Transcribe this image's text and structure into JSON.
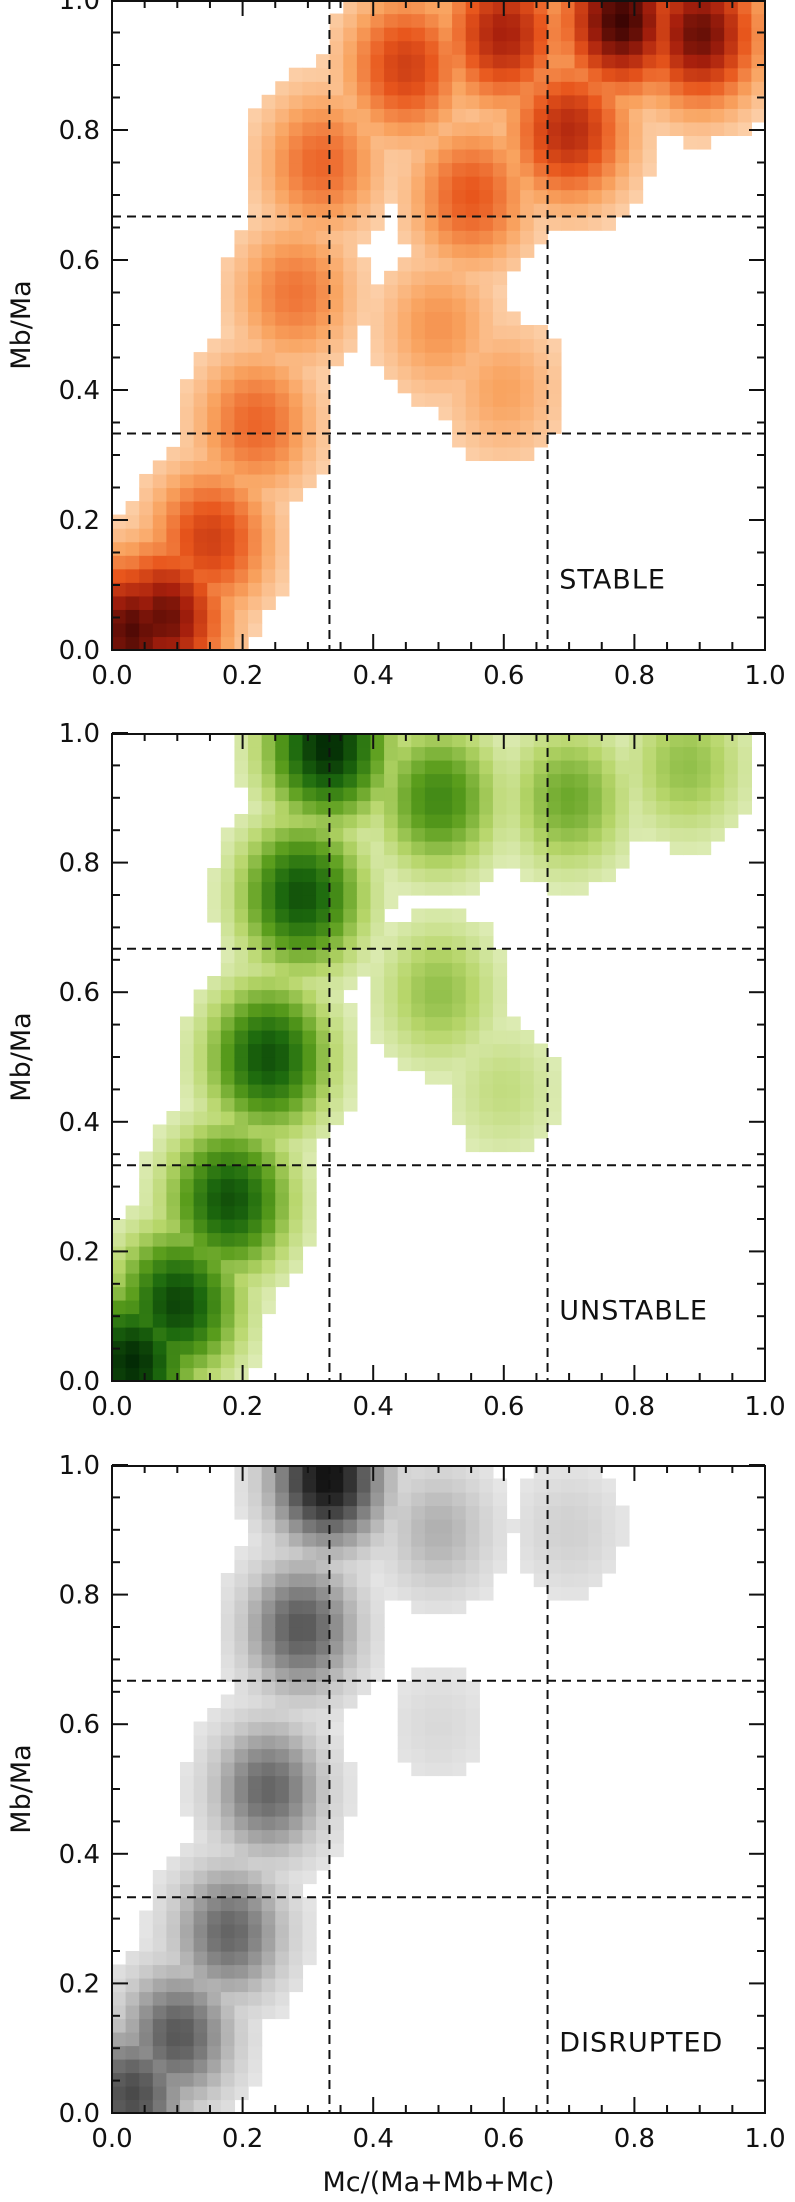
{
  "chart_data": [
    {
      "type": "heatmap",
      "label": "STABLE",
      "ylabel": "Mb/Ma",
      "xlabel": "",
      "xlim": [
        0.0,
        1.0
      ],
      "ylim": [
        0.0,
        1.0
      ],
      "x_ticks": [
        "0.0",
        "0.2",
        "0.4",
        "0.6",
        "0.8",
        "1.0"
      ],
      "y_ticks": [
        "0.0",
        "0.2",
        "0.4",
        "0.6",
        "0.8",
        "1.0"
      ],
      "reference_lines": {
        "vertical": [
          0.333,
          0.667
        ],
        "horizontal": [
          0.333,
          0.667
        ]
      },
      "colormap": [
        "#fde3c9",
        "#f9a35f",
        "#e8561c",
        "#a8200d",
        "#3c0503"
      ],
      "density_description_points": [
        {
          "x": 0.03,
          "y": 0.03,
          "level": 0.95
        },
        {
          "x": 0.08,
          "y": 0.05,
          "level": 0.9
        },
        {
          "x": 0.15,
          "y": 0.17,
          "level": 0.6
        },
        {
          "x": 0.22,
          "y": 0.35,
          "level": 0.45
        },
        {
          "x": 0.28,
          "y": 0.55,
          "level": 0.4
        },
        {
          "x": 0.32,
          "y": 0.75,
          "level": 0.45
        },
        {
          "x": 0.45,
          "y": 0.9,
          "level": 0.6
        },
        {
          "x": 0.6,
          "y": 0.95,
          "level": 0.75
        },
        {
          "x": 0.78,
          "y": 0.97,
          "level": 1.0
        },
        {
          "x": 0.9,
          "y": 0.95,
          "level": 0.9
        },
        {
          "x": 0.7,
          "y": 0.8,
          "level": 0.7
        },
        {
          "x": 0.55,
          "y": 0.7,
          "level": 0.5
        },
        {
          "x": 0.5,
          "y": 0.5,
          "level": 0.3
        },
        {
          "x": 0.6,
          "y": 0.4,
          "level": 0.25
        }
      ]
    },
    {
      "type": "heatmap",
      "label": "UNSTABLE",
      "ylabel": "Mb/Ma",
      "xlabel": "",
      "xlim": [
        0.0,
        1.0
      ],
      "ylim": [
        0.0,
        1.0
      ],
      "x_ticks": [
        "0.0",
        "0.2",
        "0.4",
        "0.6",
        "0.8",
        "1.0"
      ],
      "y_ticks": [
        "0.0",
        "0.2",
        "0.4",
        "0.6",
        "0.8",
        "1.0"
      ],
      "reference_lines": {
        "vertical": [
          0.333,
          0.667
        ],
        "horizontal": [
          0.333,
          0.667
        ]
      },
      "colormap": [
        "#eef5d6",
        "#b7d66a",
        "#5a9d1c",
        "#1d6a0e",
        "#032b05"
      ],
      "density_description_points": [
        {
          "x": 0.03,
          "y": 0.03,
          "level": 1.0
        },
        {
          "x": 0.1,
          "y": 0.12,
          "level": 0.9
        },
        {
          "x": 0.18,
          "y": 0.28,
          "level": 0.85
        },
        {
          "x": 0.24,
          "y": 0.5,
          "level": 0.85
        },
        {
          "x": 0.29,
          "y": 0.75,
          "level": 0.85
        },
        {
          "x": 0.33,
          "y": 0.98,
          "level": 1.0
        },
        {
          "x": 0.5,
          "y": 0.9,
          "level": 0.6
        },
        {
          "x": 0.7,
          "y": 0.9,
          "level": 0.45
        },
        {
          "x": 0.88,
          "y": 0.95,
          "level": 0.35
        },
        {
          "x": 0.5,
          "y": 0.6,
          "level": 0.35
        },
        {
          "x": 0.6,
          "y": 0.45,
          "level": 0.2
        }
      ]
    },
    {
      "type": "heatmap",
      "label": "DISRUPTED",
      "ylabel": "Mb/Ma",
      "xlabel": "Mc/(Ma+Mb+Mc)",
      "xlim": [
        0.0,
        1.0
      ],
      "ylim": [
        0.0,
        1.0
      ],
      "x_ticks": [
        "0.0",
        "0.2",
        "0.4",
        "0.6",
        "0.8",
        "1.0"
      ],
      "y_ticks": [
        "0.0",
        "0.2",
        "0.4",
        "0.6",
        "0.8",
        "1.0"
      ],
      "reference_lines": {
        "vertical": [
          0.333,
          0.667
        ],
        "horizontal": [
          0.333,
          0.667
        ]
      },
      "colormap": [
        "#f2f2f2",
        "#c8c8c8",
        "#8c8c8c",
        "#4a4a4a",
        "#111111"
      ],
      "density_description_points": [
        {
          "x": 0.03,
          "y": 0.03,
          "level": 0.75
        },
        {
          "x": 0.1,
          "y": 0.12,
          "level": 0.7
        },
        {
          "x": 0.18,
          "y": 0.28,
          "level": 0.65
        },
        {
          "x": 0.24,
          "y": 0.5,
          "level": 0.65
        },
        {
          "x": 0.29,
          "y": 0.75,
          "level": 0.7
        },
        {
          "x": 0.33,
          "y": 0.98,
          "level": 1.0
        },
        {
          "x": 0.5,
          "y": 0.9,
          "level": 0.35
        },
        {
          "x": 0.7,
          "y": 0.9,
          "level": 0.2
        },
        {
          "x": 0.5,
          "y": 0.6,
          "level": 0.15
        }
      ]
    }
  ]
}
